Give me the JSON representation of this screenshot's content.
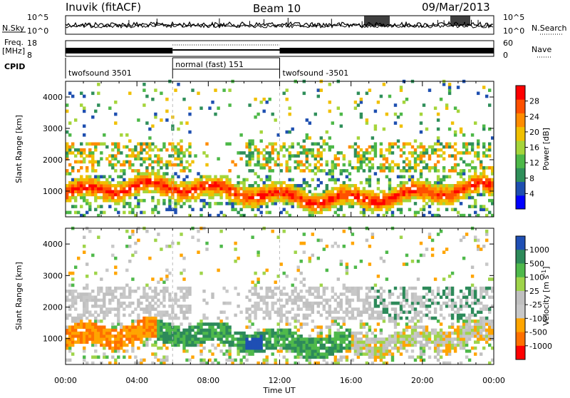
{
  "header": {
    "station": "Inuvik (fitACF)",
    "beam": "Beam 10",
    "date": "09/Mar/2013"
  },
  "top_panels": {
    "nsky_label": "N.Sky",
    "nsearch_label": "N.Search",
    "noise_left_ticks": [
      "10^5",
      "10^0"
    ],
    "noise_right_ticks": [
      "10^5",
      "10^0"
    ],
    "freq_label": "Freq.",
    "freq_unit": "[MHz]",
    "freq_ticks": [
      "18",
      "8"
    ],
    "nave_label": "Nave",
    "nave_ticks": [
      "60",
      "0"
    ],
    "cpid_label": "CPID",
    "cpid_segments": [
      {
        "label": "twofsound 3501",
        "start": 0,
        "end": 6
      },
      {
        "label": "normal (fast) 151",
        "start": 6,
        "end": 12
      },
      {
        "label": "twofsound -3501",
        "start": 12,
        "end": 24
      }
    ]
  },
  "colors": {
    "power_scale": [
      "#0000ff",
      "#1e4fb0",
      "#2f8f5a",
      "#4db848",
      "#a5d53a",
      "#f0c000",
      "#ff8c00",
      "#ff5000",
      "#ff0000"
    ],
    "velocity_scale": [
      "#1f4fb4",
      "#2d8a5a",
      "#4fb94b",
      "#9fd44a",
      "#c0c0c0",
      "#c8c8c8",
      "#ffa500",
      "#ff7000",
      "#ff0000"
    ]
  },
  "chart_data": [
    {
      "type": "heatmap",
      "name": "power",
      "ylabel": "Slant Range [km]",
      "xlabel": "",
      "x_range_hours": [
        0,
        24
      ],
      "ylim": [
        180,
        4500
      ],
      "yticks": [
        "1000",
        "2000",
        "3000",
        "4000"
      ],
      "ytick_values": [
        1000,
        2000,
        3000,
        4000
      ],
      "colorbar_label": "Power [dB]",
      "colorbar_ticks": [
        "4",
        "8",
        "12",
        "16",
        "20",
        "24",
        "28"
      ],
      "colorbar_range": [
        0,
        32
      ],
      "bands": [
        {
          "range_center": 850,
          "width": 700,
          "level": "high"
        },
        {
          "range_center": 1900,
          "width": 600,
          "level": "medium"
        },
        {
          "range_center": 3000,
          "width": 800,
          "level": "low"
        }
      ]
    },
    {
      "type": "heatmap",
      "name": "velocity",
      "ylabel": "Slant Range [km]",
      "xlabel": "Time UT",
      "x_range_hours": [
        0,
        24
      ],
      "ylim": [
        180,
        4500
      ],
      "yticks": [
        "1000",
        "2000",
        "3000",
        "4000"
      ],
      "ytick_values": [
        1000,
        2000,
        3000,
        4000
      ],
      "xticks": [
        "00:00",
        "04:00",
        "08:00",
        "12:00",
        "16:00",
        "20:00",
        "00:00"
      ],
      "xtick_values": [
        0,
        4,
        8,
        12,
        16,
        20,
        24
      ],
      "colorbar_label": "Velocity [m s",
      "colorbar_label_superscript": "-1",
      "colorbar_label_end": "]",
      "colorbar_ticks": [
        "1000",
        "500",
        "100",
        "25",
        "-25",
        "-100",
        "-500",
        "-1000"
      ]
    }
  ]
}
